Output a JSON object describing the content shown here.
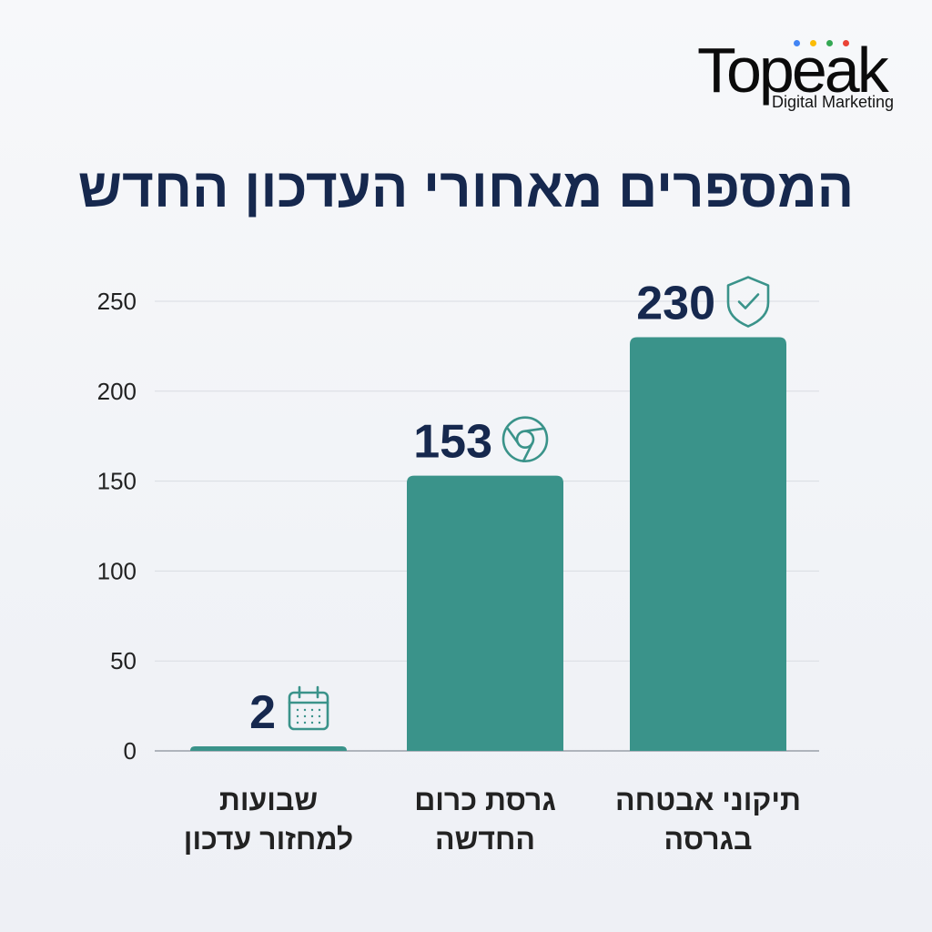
{
  "logo": {
    "word": "Topeak",
    "subtitle": "Digital Marketing",
    "dot_colors": [
      "#4285f4",
      "#fbbc05",
      "#34a853",
      "#ea4335"
    ]
  },
  "title": "המספרים מאחורי העדכון החדש",
  "colors": {
    "bar": "#3a938a",
    "value_text": "#16284e",
    "icon_stroke": "#3a938a",
    "axis_text": "#222222",
    "grid": "#d9dce2"
  },
  "chart_data": {
    "type": "bar",
    "ylim": [
      0,
      250
    ],
    "yticks": [
      0,
      50,
      100,
      150,
      200,
      250
    ],
    "grid": true,
    "bars": [
      {
        "value": 2,
        "value_label": "2",
        "icon": "calendar-icon",
        "label_lines": [
          "שבועות",
          "למחזור עדכון"
        ]
      },
      {
        "value": 153,
        "value_label": "153",
        "icon": "chrome-icon",
        "label_lines": [
          "גרסת כרום",
          "החדשה"
        ]
      },
      {
        "value": 230,
        "value_label": "230",
        "icon": "shield-check-icon",
        "label_lines": [
          "תיקוני אבטחה",
          "בגרסה"
        ]
      }
    ]
  }
}
